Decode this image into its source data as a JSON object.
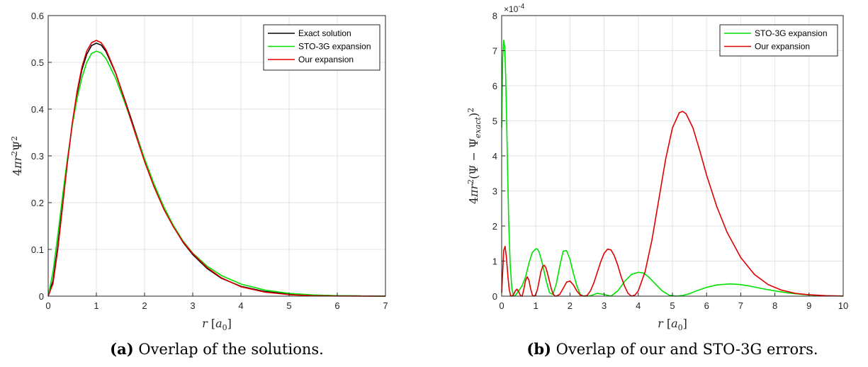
{
  "chart_data": [
    {
      "type": "line",
      "xlabel": "r [a0]",
      "ylabel": "4πr²Ψ²",
      "xlim": [
        0,
        7
      ],
      "ylim": [
        0,
        0.6
      ],
      "xticks": [
        "0",
        "1",
        "2",
        "3",
        "4",
        "5",
        "6",
        "7"
      ],
      "yticks": [
        "0",
        "0.1",
        "0.2",
        "0.3",
        "0.4",
        "0.5",
        "0.6"
      ],
      "grid": true,
      "legend": "top-right",
      "series": [
        {
          "name": "Exact solution",
          "color": "#000000",
          "x": [
            0,
            0.1,
            0.2,
            0.3,
            0.4,
            0.5,
            0.6,
            0.7,
            0.8,
            0.9,
            1.0,
            1.1,
            1.2,
            1.4,
            1.6,
            1.8,
            2.0,
            2.2,
            2.4,
            2.6,
            2.8,
            3.0,
            3.3,
            3.6,
            4.0,
            4.5,
            5.0,
            5.5,
            6.0,
            6.5,
            7.0
          ],
          "y": [
            0,
            0.033,
            0.107,
            0.198,
            0.288,
            0.368,
            0.434,
            0.484,
            0.517,
            0.536,
            0.541,
            0.537,
            0.523,
            0.477,
            0.417,
            0.355,
            0.293,
            0.237,
            0.189,
            0.149,
            0.115,
            0.089,
            0.059,
            0.038,
            0.021,
            0.0099,
            0.0045,
            0.002,
            0.00089,
            0.00039,
            0.00017
          ]
        },
        {
          "name": "STO-3G expansion",
          "color": "#00e000",
          "x": [
            0,
            0.1,
            0.2,
            0.3,
            0.4,
            0.5,
            0.6,
            0.7,
            0.8,
            0.9,
            1.0,
            1.1,
            1.2,
            1.4,
            1.6,
            1.8,
            2.0,
            2.2,
            2.4,
            2.6,
            2.8,
            3.0,
            3.3,
            3.6,
            4.0,
            4.5,
            5.0,
            5.5,
            6.0,
            6.5,
            7.0
          ],
          "y": [
            0,
            0.052,
            0.13,
            0.215,
            0.295,
            0.365,
            0.423,
            0.467,
            0.5,
            0.519,
            0.524,
            0.52,
            0.508,
            0.466,
            0.411,
            0.352,
            0.294,
            0.239,
            0.191,
            0.151,
            0.118,
            0.092,
            0.064,
            0.044,
            0.026,
            0.013,
            0.006,
            0.0025,
            0.001,
            0.0004,
            0.0001
          ]
        },
        {
          "name": "Our expansion",
          "color": "#e00000",
          "x": [
            0,
            0.1,
            0.2,
            0.3,
            0.4,
            0.5,
            0.6,
            0.7,
            0.8,
            0.9,
            1.0,
            1.1,
            1.2,
            1.4,
            1.6,
            1.8,
            2.0,
            2.2,
            2.4,
            2.6,
            2.8,
            3.0,
            3.3,
            3.6,
            4.0,
            4.5,
            5.0,
            5.5,
            6.0,
            6.5,
            7.0
          ],
          "y": [
            0,
            0.027,
            0.1,
            0.193,
            0.287,
            0.37,
            0.438,
            0.49,
            0.524,
            0.542,
            0.547,
            0.542,
            0.527,
            0.478,
            0.415,
            0.35,
            0.288,
            0.233,
            0.186,
            0.148,
            0.116,
            0.091,
            0.061,
            0.039,
            0.02,
            0.0085,
            0.0032,
            0.0011,
            0.0003,
            0.0001,
            0.0
          ]
        }
      ]
    },
    {
      "type": "line",
      "xlabel": "r [a0]",
      "ylabel": "4πr²(Ψ − Ψexact)²",
      "xlim": [
        0,
        10
      ],
      "ylim": [
        0,
        8
      ],
      "y_multiplier": "×10⁻⁴",
      "xticks": [
        "0",
        "1",
        "2",
        "3",
        "4",
        "5",
        "6",
        "7",
        "8",
        "9",
        "10"
      ],
      "yticks": [
        "0",
        "1",
        "2",
        "3",
        "4",
        "5",
        "6",
        "7",
        "8"
      ],
      "grid": true,
      "legend": "top-right",
      "series": [
        {
          "name": "STO-3G expansion",
          "color": "#00e000",
          "x": [
            0,
            0.03,
            0.06,
            0.09,
            0.12,
            0.15,
            0.18,
            0.21,
            0.25,
            0.3,
            0.35,
            0.4,
            0.5,
            0.6,
            0.7,
            0.8,
            0.9,
            1.0,
            1.05,
            1.1,
            1.2,
            1.3,
            1.4,
            1.5,
            1.6,
            1.7,
            1.8,
            1.9,
            2.0,
            2.1,
            2.2,
            2.3,
            2.4,
            2.5,
            2.6,
            2.8,
            3.0,
            3.2,
            3.4,
            3.6,
            3.8,
            4.0,
            4.15,
            4.3,
            4.5,
            4.7,
            4.9,
            5.1,
            5.3,
            5.5,
            5.7,
            6.0,
            6.3,
            6.7,
            7.0,
            7.3,
            7.6,
            8.0,
            8.4,
            8.8,
            9.2,
            9.6,
            10.0
          ],
          "y": [
            4.8,
            6.8,
            7.3,
            7.1,
            6.2,
            4.8,
            3.3,
            2.0,
            0.9,
            0.2,
            0.0,
            0.02,
            0.15,
            0.3,
            0.55,
            0.95,
            1.25,
            1.35,
            1.34,
            1.25,
            0.9,
            0.45,
            0.1,
            0.05,
            0.35,
            0.85,
            1.28,
            1.3,
            1.05,
            0.65,
            0.3,
            0.05,
            0.0,
            0.0,
            0.01,
            0.08,
            0.05,
            0.0,
            0.15,
            0.42,
            0.62,
            0.68,
            0.66,
            0.55,
            0.35,
            0.15,
            0.03,
            0.0,
            0.02,
            0.07,
            0.15,
            0.25,
            0.32,
            0.35,
            0.33,
            0.28,
            0.22,
            0.15,
            0.09,
            0.05,
            0.02,
            0.01,
            0.0
          ]
        },
        {
          "name": "Our expansion",
          "color": "#e00000",
          "x": [
            0,
            0.03,
            0.06,
            0.1,
            0.14,
            0.18,
            0.22,
            0.26,
            0.3,
            0.35,
            0.4,
            0.45,
            0.5,
            0.55,
            0.6,
            0.65,
            0.7,
            0.75,
            0.8,
            0.85,
            0.9,
            0.95,
            1.0,
            1.05,
            1.1,
            1.15,
            1.2,
            1.25,
            1.3,
            1.35,
            1.4,
            1.45,
            1.5,
            1.55,
            1.6,
            1.7,
            1.8,
            1.9,
            2.0,
            2.1,
            2.2,
            2.3,
            2.4,
            2.5,
            2.6,
            2.7,
            2.8,
            2.9,
            3.0,
            3.1,
            3.2,
            3.3,
            3.4,
            3.5,
            3.6,
            3.7,
            3.8,
            3.9,
            4.0,
            4.2,
            4.4,
            4.6,
            4.8,
            5.0,
            5.2,
            5.3,
            5.4,
            5.6,
            5.8,
            6.0,
            6.3,
            6.6,
            7.0,
            7.4,
            7.8,
            8.2,
            8.6,
            9.0,
            9.5,
            10.0
          ],
          "y": [
            0.1,
            0.7,
            1.3,
            1.42,
            1.1,
            0.6,
            0.2,
            0.02,
            0.0,
            0.05,
            0.15,
            0.2,
            0.12,
            0.02,
            0.0,
            0.2,
            0.45,
            0.55,
            0.45,
            0.2,
            0.03,
            0.0,
            0.05,
            0.2,
            0.45,
            0.7,
            0.85,
            0.88,
            0.8,
            0.62,
            0.42,
            0.22,
            0.08,
            0.01,
            0.0,
            0.05,
            0.22,
            0.4,
            0.43,
            0.32,
            0.15,
            0.03,
            0.0,
            0.02,
            0.15,
            0.38,
            0.68,
            0.98,
            1.22,
            1.34,
            1.32,
            1.15,
            0.88,
            0.55,
            0.28,
            0.08,
            0.0,
            0.03,
            0.15,
            0.7,
            1.6,
            2.75,
            3.9,
            4.8,
            5.23,
            5.27,
            5.2,
            4.8,
            4.15,
            3.45,
            2.55,
            1.82,
            1.1,
            0.62,
            0.33,
            0.17,
            0.08,
            0.04,
            0.015,
            0.005
          ]
        }
      ]
    }
  ],
  "captions": [
    {
      "label": "(a)",
      "text": "Overlap of the solutions."
    },
    {
      "label": "(b)",
      "text": "Overlap of our and STO-3G errors."
    }
  ]
}
